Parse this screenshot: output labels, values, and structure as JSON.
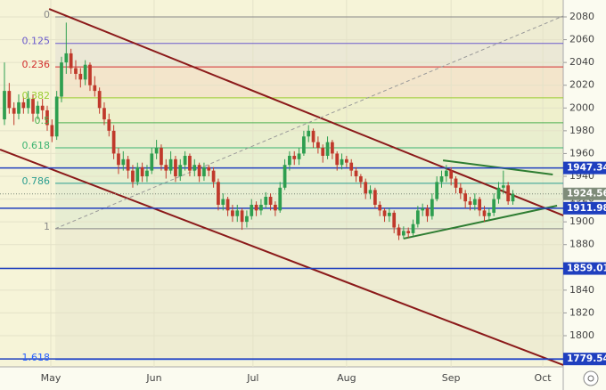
{
  "chart_data": {
    "type": "candlestick",
    "ohlc": [
      [
        1990,
        2040,
        1985,
        2015
      ],
      [
        2015,
        2022,
        1995,
        2000
      ],
      [
        2000,
        2005,
        1985,
        1995
      ],
      [
        1995,
        2012,
        1990,
        2005
      ],
      [
        2005,
        2010,
        1995,
        2000
      ],
      [
        2000,
        2015,
        1995,
        2008
      ],
      [
        2008,
        2012,
        1988,
        1995
      ],
      [
        1995,
        2006,
        1990,
        2002
      ],
      [
        2002,
        2008,
        1990,
        1998
      ],
      [
        1998,
        2002,
        1980,
        1985
      ],
      [
        1985,
        1990,
        1970,
        1975
      ],
      [
        1975,
        2015,
        1972,
        2010
      ],
      [
        2010,
        2045,
        2005,
        2040
      ],
      [
        2040,
        2075,
        2030,
        2048
      ],
      [
        2048,
        2052,
        2030,
        2035
      ],
      [
        2035,
        2042,
        2025,
        2030
      ],
      [
        2030,
        2035,
        2018,
        2025
      ],
      [
        2025,
        2042,
        2020,
        2038
      ],
      [
        2038,
        2040,
        2015,
        2020
      ],
      [
        2020,
        2028,
        2010,
        2015
      ],
      [
        2015,
        2018,
        1995,
        2000
      ],
      [
        2000,
        2005,
        1985,
        1990
      ],
      [
        1990,
        1995,
        1975,
        1980
      ],
      [
        1980,
        1985,
        1955,
        1960
      ],
      [
        1960,
        1965,
        1942,
        1950
      ],
      [
        1950,
        1962,
        1945,
        1955
      ],
      [
        1955,
        1958,
        1938,
        1945
      ],
      [
        1945,
        1950,
        1930,
        1935
      ],
      [
        1935,
        1952,
        1932,
        1948
      ],
      [
        1948,
        1952,
        1935,
        1940
      ],
      [
        1940,
        1950,
        1935,
        1945
      ],
      [
        1945,
        1965,
        1942,
        1960
      ],
      [
        1960,
        1972,
        1955,
        1965
      ],
      [
        1965,
        1968,
        1945,
        1950
      ],
      [
        1950,
        1955,
        1938,
        1945
      ],
      [
        1945,
        1962,
        1942,
        1955
      ],
      [
        1955,
        1958,
        1935,
        1940
      ],
      [
        1940,
        1955,
        1936,
        1950
      ],
      [
        1950,
        1962,
        1945,
        1958
      ],
      [
        1958,
        1960,
        1940,
        1945
      ],
      [
        1945,
        1955,
        1940,
        1950
      ],
      [
        1950,
        1952,
        1935,
        1940
      ],
      [
        1940,
        1952,
        1936,
        1948
      ],
      [
        1948,
        1950,
        1940,
        1945
      ],
      [
        1945,
        1948,
        1930,
        1935
      ],
      [
        1935,
        1938,
        1910,
        1915
      ],
      [
        1915,
        1925,
        1910,
        1920
      ],
      [
        1920,
        1922,
        1905,
        1910
      ],
      [
        1910,
        1915,
        1900,
        1905
      ],
      [
        1905,
        1915,
        1900,
        1910
      ],
      [
        1910,
        1912,
        1893,
        1900
      ],
      [
        1900,
        1910,
        1895,
        1905
      ],
      [
        1905,
        1920,
        1902,
        1915
      ],
      [
        1915,
        1918,
        1905,
        1910
      ],
      [
        1910,
        1920,
        1906,
        1915
      ],
      [
        1915,
        1926,
        1912,
        1922
      ],
      [
        1922,
        1925,
        1910,
        1915
      ],
      [
        1915,
        1918,
        1905,
        1910
      ],
      [
        1910,
        1935,
        1908,
        1930
      ],
      [
        1930,
        1955,
        1928,
        1950
      ],
      [
        1950,
        1962,
        1945,
        1958
      ],
      [
        1958,
        1962,
        1950,
        1955
      ],
      [
        1955,
        1965,
        1950,
        1960
      ],
      [
        1960,
        1980,
        1958,
        1975
      ],
      [
        1975,
        1985,
        1970,
        1980
      ],
      [
        1980,
        1982,
        1965,
        1970
      ],
      [
        1970,
        1975,
        1960,
        1965
      ],
      [
        1965,
        1968,
        1952,
        1958
      ],
      [
        1958,
        1975,
        1955,
        1970
      ],
      [
        1970,
        1972,
        1955,
        1960
      ],
      [
        1960,
        1962,
        1945,
        1950
      ],
      [
        1950,
        1960,
        1946,
        1955
      ],
      [
        1955,
        1958,
        1948,
        1952
      ],
      [
        1952,
        1955,
        1940,
        1945
      ],
      [
        1945,
        1948,
        1935,
        1940
      ],
      [
        1940,
        1942,
        1930,
        1935
      ],
      [
        1935,
        1938,
        1920,
        1925
      ],
      [
        1925,
        1932,
        1920,
        1928
      ],
      [
        1928,
        1930,
        1912,
        1915
      ],
      [
        1915,
        1918,
        1905,
        1910
      ],
      [
        1910,
        1912,
        1900,
        1905
      ],
      [
        1905,
        1912,
        1900,
        1908
      ],
      [
        1908,
        1910,
        1890,
        1895
      ],
      [
        1895,
        1898,
        1884,
        1888
      ],
      [
        1888,
        1896,
        1885,
        1892
      ],
      [
        1892,
        1895,
        1886,
        1890
      ],
      [
        1890,
        1902,
        1888,
        1898
      ],
      [
        1898,
        1914,
        1895,
        1910
      ],
      [
        1910,
        1916,
        1905,
        1912
      ],
      [
        1912,
        1915,
        1900,
        1905
      ],
      [
        1905,
        1925,
        1902,
        1920
      ],
      [
        1920,
        1940,
        1918,
        1935
      ],
      [
        1935,
        1945,
        1930,
        1940
      ],
      [
        1940,
        1950,
        1935,
        1945
      ],
      [
        1945,
        1948,
        1932,
        1938
      ],
      [
        1938,
        1940,
        1925,
        1930
      ],
      [
        1930,
        1934,
        1920,
        1925
      ],
      [
        1925,
        1928,
        1912,
        1918
      ],
      [
        1918,
        1922,
        1910,
        1915
      ],
      [
        1915,
        1925,
        1910,
        1920
      ],
      [
        1920,
        1922,
        1905,
        1910
      ],
      [
        1910,
        1914,
        1900,
        1905
      ],
      [
        1905,
        1912,
        1902,
        1908
      ],
      [
        1908,
        1925,
        1905,
        1920
      ],
      [
        1920,
        1935,
        1916,
        1930
      ],
      [
        1930,
        1945,
        1925,
        1932
      ],
      [
        1932,
        1935,
        1915,
        1918
      ],
      [
        1918,
        1928,
        1915,
        1924.56
      ]
    ],
    "up_color": "#2e9e4f",
    "down_color": "#c0392b",
    "xlim": [
      -0.94,
      117.6
    ],
    "xticks": [
      {
        "value": 9.75,
        "label": "May"
      },
      {
        "value": 31.5,
        "label": "Jun"
      },
      {
        "value": 52.3,
        "label": "Jul"
      },
      {
        "value": 72,
        "label": "Aug"
      },
      {
        "value": 94,
        "label": "Sep"
      },
      {
        "value": 113.3,
        "label": "Oct"
      }
    ],
    "ylim": [
      1770,
      2080
    ],
    "yticks": [
      1800,
      1820,
      1840,
      1860,
      1880,
      1900,
      1920,
      1940,
      1960,
      1980,
      2000,
      2020,
      2040,
      2060,
      2080
    ],
    "grid": true,
    "fib": {
      "start": 2080,
      "end": 1894,
      "from_x": 10.7,
      "levels": [
        {
          "ratio": 0,
          "color": "#888888"
        },
        {
          "ratio": 0.125,
          "color": "#6a5acd"
        },
        {
          "ratio": 0.236,
          "color": "#d32f2f"
        },
        {
          "ratio": 0.382,
          "color": "#9acd32"
        },
        {
          "ratio": 0.5,
          "color": "#4caf50"
        },
        {
          "ratio": 0.618,
          "color": "#3cb371"
        },
        {
          "ratio": 0.786,
          "color": "#2a9d8f"
        },
        {
          "ratio": 1,
          "color": "#888888"
        },
        {
          "ratio": 1.618,
          "color": "#2962ff"
        }
      ]
    },
    "price_levels": [
      {
        "value": 1947.34,
        "color": "#1f3fbf"
      },
      {
        "value": 1911.98,
        "color": "#1f3fbf"
      },
      {
        "value": 1859.01,
        "color": "#1f3fbf"
      },
      {
        "value": 1779.54,
        "color": "#1f3fbf"
      }
    ],
    "trend_lines": [
      {
        "points": [
          [
            9.4,
            2087
          ],
          [
            117.6,
            1905.6
          ]
        ],
        "color": "#8b1a1a",
        "style": "solid"
      },
      {
        "points": [
          [
            -0.94,
            1963.5
          ],
          [
            117.6,
            1774.2
          ]
        ],
        "color": "#8b1a1a",
        "style": "solid"
      },
      {
        "points": [
          [
            10.7,
            1894
          ],
          [
            117.6,
            2080.8
          ]
        ],
        "color": "#999999",
        "style": "dashed"
      },
      {
        "points": [
          [
            92.3,
            1954
          ],
          [
            115.4,
            1941.6
          ]
        ],
        "color": "#2e7d32",
        "style": "solid"
      },
      {
        "points": [
          [
            84,
            1885.3
          ],
          [
            116.3,
            1914.2
          ]
        ],
        "color": "#2e7d32",
        "style": "solid"
      }
    ],
    "last_price_color": "#7f8c7a"
  }
}
